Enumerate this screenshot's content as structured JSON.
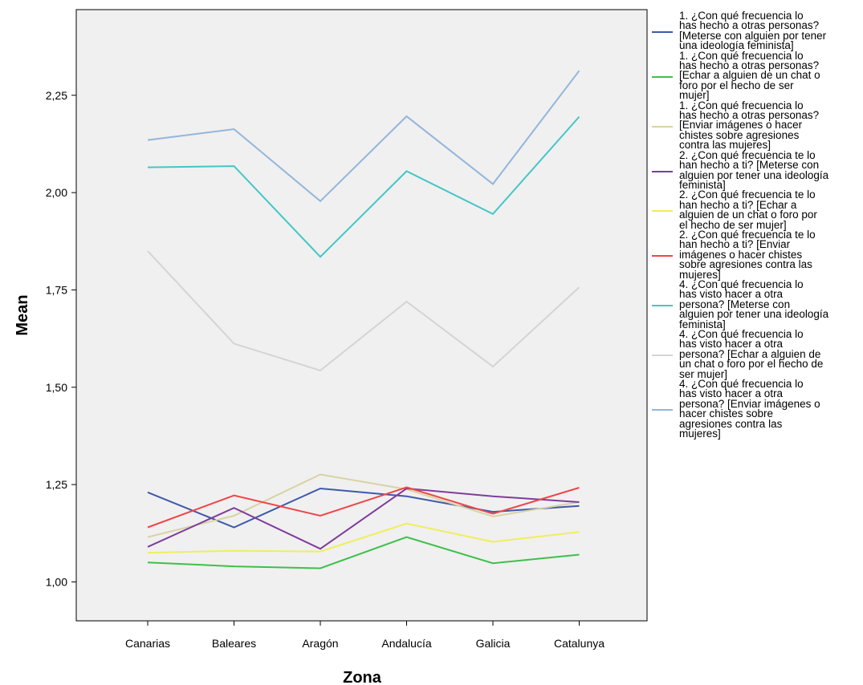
{
  "chart_data": {
    "type": "line",
    "title": "",
    "xlabel": "Zona",
    "ylabel": "Mean",
    "categories": [
      "Canarias",
      "Baleares",
      "Aragón",
      "Andalucía",
      "Galicia",
      "Catalunya"
    ],
    "ylim": [
      0.9,
      2.47
    ],
    "yticks": [
      1.0,
      1.25,
      1.5,
      1.75,
      2.0,
      2.25
    ],
    "ytick_labels": [
      "1,00",
      "1,25",
      "1,50",
      "1,75",
      "2,00",
      "2,25"
    ],
    "grid": false,
    "legend_position": "right",
    "plot_background": "#f0f0f0",
    "series": [
      {
        "name": "1. ¿Con qué frecuencia lo has hecho a otras personas? [Meterse con alguien por tener una ideología feminista]",
        "color": "#3e58ac",
        "values": [
          1.23,
          1.14,
          1.24,
          1.22,
          1.18,
          1.195
        ]
      },
      {
        "name": "1. ¿Con qué frecuencia lo has hecho a otras personas? [Echar a alguien de un chat o foro por el hecho de ser mujer]",
        "color": "#3dc04a",
        "values": [
          1.05,
          1.04,
          1.035,
          1.115,
          1.048,
          1.07
        ]
      },
      {
        "name": "1. ¿Con qué frecuencia lo has hecho a otras personas? [Enviar imágenes o hacer chistes sobre agresiones contra las mujeres]",
        "color": "#d8d3a3",
        "values": [
          1.115,
          1.17,
          1.276,
          1.238,
          1.168,
          1.205
        ]
      },
      {
        "name": "2. ¿Con qué frecuencia te lo han hecho a ti? [Meterse con alguien por tener una ideología feminista]",
        "color": "#7f3c9c",
        "values": [
          1.09,
          1.19,
          1.085,
          1.24,
          1.22,
          1.205
        ]
      },
      {
        "name": "2. ¿Con qué frecuencia te lo han hecho a ti? [Echar a alguien de un chat o foro por el hecho de ser mujer]",
        "color": "#f0ee5c",
        "values": [
          1.075,
          1.08,
          1.078,
          1.15,
          1.103,
          1.128
        ]
      },
      {
        "name": "2. ¿Con qué frecuencia te lo han hecho a ti? [Enviar imágenes o hacer chistes sobre agresiones contra las mujeres]",
        "color": "#f04548",
        "values": [
          1.14,
          1.222,
          1.17,
          1.243,
          1.175,
          1.242
        ]
      },
      {
        "name": "4. ¿Con qué frecuencia lo has visto hacer a otra persona? [Meterse con alguien por tener una ideología feminista]",
        "color": "#43c6c6",
        "values": [
          2.065,
          2.068,
          1.835,
          2.055,
          1.945,
          2.195
        ]
      },
      {
        "name": "4. ¿Con qué frecuencia lo has visto hacer a otra persona? [Echar a alguien de un chat o foro por el hecho de ser mujer]",
        "color": "#d4d4d4",
        "values": [
          1.85,
          1.612,
          1.543,
          1.72,
          1.553,
          1.757
        ]
      },
      {
        "name": "4. ¿Con qué frecuencia lo has visto hacer a otra persona? [Enviar imágenes o hacer chistes sobre agresiones contra las mujeres]",
        "color": "#94b5db",
        "values": [
          2.135,
          2.163,
          1.978,
          2.196,
          2.022,
          2.313
        ]
      }
    ]
  },
  "legend_display": [
    "1. ¿Con qué frecuencia lo\nhas hecho a otras personas?\n[Meterse con alguien por tener\nuna ideología feminista]",
    "1. ¿Con qué frecuencia lo\nhas hecho a otras personas?\n[Echar a alguien de un chat o\nforo por el hecho de ser\nmujer]",
    "1. ¿Con qué frecuencia lo\nhas hecho a otras personas?\n[Enviar imágenes o hacer\nchistes sobre agresiones\ncontra las mujeres]",
    "2. ¿Con qué frecuencia te lo\nhan hecho a ti? [Meterse con\nalguien por tener una ideología\nfeminista]",
    "2. ¿Con qué frecuencia te lo\nhan hecho a ti? [Echar a\nalguien de un chat o foro por\nel hecho de ser mujer]",
    "2. ¿Con qué frecuencia te lo\nhan hecho a ti? [Enviar\nimágenes o hacer chistes\nsobre agresiones contra las\nmujeres]",
    "4. ¿Con qué frecuencia lo\nhas visto hacer a otra\npersona? [Meterse con\nalguien por tener una ideología\nfeminista]",
    "4. ¿Con qué frecuencia lo\nhas visto hacer a otra\npersona? [Echar a alguien de\nun chat o foro por el hecho de\nser mujer]",
    "4. ¿Con qué frecuencia lo\nhas visto hacer a otra\npersona? [Enviar imágenes o\nhacer chistes sobre\nagresiones contra las\nmujeres]"
  ]
}
